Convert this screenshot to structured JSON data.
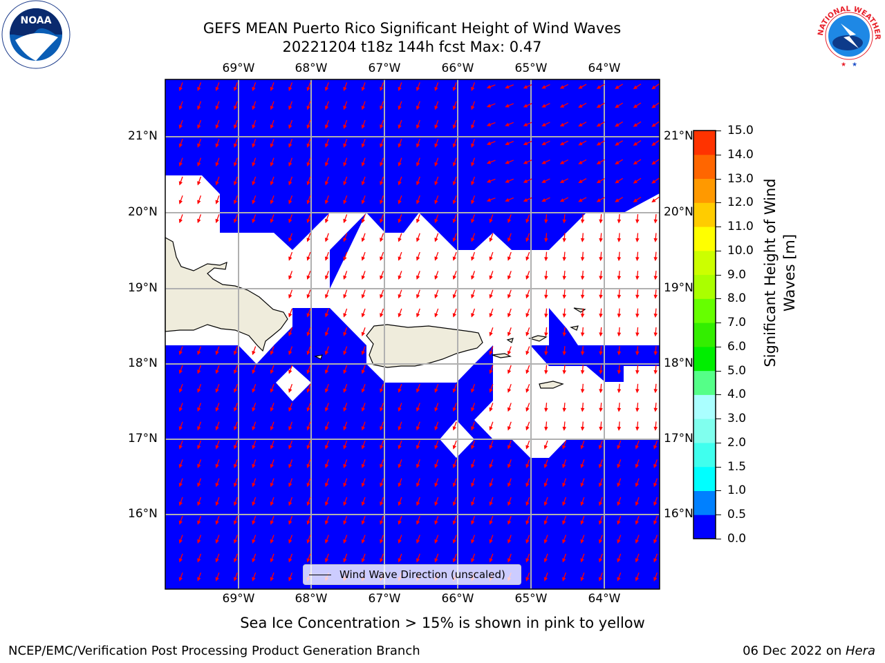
{
  "title_line1": "GEFS MEAN Puerto Rico Significant Height of Wind Waves",
  "title_line2": "20221204 t18z 144h fcst   Max: 0.47",
  "lon_labels": [
    "69°W",
    "68°W",
    "67°W",
    "66°W",
    "65°W",
    "64°W"
  ],
  "lat_labels": [
    "21°N",
    "20°N",
    "19°N",
    "18°N",
    "17°N",
    "16°N"
  ],
  "legend_label": "Wind Wave Direction (unscaled)",
  "colorbar": {
    "label_line1": "Significant Height of Wind",
    "label_line2": "Waves [m]",
    "ticks": [
      "15.0",
      "14.0",
      "13.0",
      "12.0",
      "11.0",
      "10.0",
      "9.0",
      "8.0",
      "7.0",
      "6.0",
      "5.0",
      "4.0",
      "3.0",
      "2.0",
      "1.5",
      "1.0",
      "0.5",
      "0.0"
    ],
    "colors": [
      "#0000ff",
      "#0080ff",
      "#00ffff",
      "#40ffee",
      "#80ffee",
      "#aaffff",
      "#55ff88",
      "#00ee00",
      "#33ee00",
      "#66ff00",
      "#aaff00",
      "#ccff00",
      "#ffff00",
      "#ffcc00",
      "#ff9900",
      "#ff6600",
      "#ff3300",
      "#ff0000"
    ]
  },
  "sea_ice_note": "Sea Ice Concentration > 15% is shown in pink to yellow",
  "footer_left": "NCEP/EMC/Verification Post Processing Product Generation Branch",
  "footer_date": "06 Dec 2022 on ",
  "footer_machine": "Hera",
  "logos": {
    "left": "NOAA",
    "right": "NATIONAL WEATHER SERVICE"
  },
  "map_colors": {
    "ocean": "#0000ff",
    "land": "#efecdc",
    "arrows": "#ff0000",
    "grid": "#b0b0b0"
  }
}
